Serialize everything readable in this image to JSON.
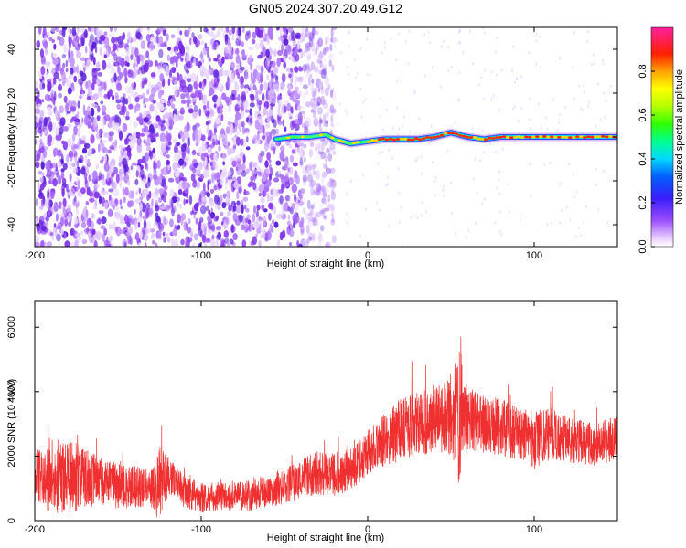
{
  "title": "GN05.2024.307.20.49.G12",
  "chart_data": [
    {
      "type": "heatmap",
      "title": "GN05.2024.307.20.49.G12",
      "xlabel": "Height of straight line (km)",
      "ylabel": "Frequency (Hz)",
      "xlim": [
        -200,
        150
      ],
      "ylim": [
        -50,
        50
      ],
      "xticks": [
        "-200",
        "-100",
        "0",
        "100"
      ],
      "yticks": [
        "-40",
        "-20",
        "0",
        "20",
        "40"
      ],
      "colorbar": {
        "label": "Normalized spectral amplitude",
        "range": [
          0.0,
          1.0
        ],
        "ticks": [
          "0.0",
          "0.2",
          "0.4",
          "0.6",
          "0.8"
        ]
      },
      "ridge": {
        "description_points_x": [
          -55,
          -45,
          -35,
          -25,
          -20,
          -10,
          0,
          10,
          20,
          30,
          40,
          45,
          50,
          60,
          70,
          80,
          90,
          100,
          110,
          120,
          130,
          140,
          150
        ],
        "frequency_y": [
          -1,
          0,
          0,
          1,
          -1,
          -3,
          -2,
          -1,
          -1,
          -1,
          0,
          1,
          2,
          0,
          -1,
          0,
          0,
          0,
          0,
          0,
          0,
          0,
          0
        ]
      }
    },
    {
      "type": "line",
      "xlabel": "Height of straight line (km)",
      "ylabel": "SNR (10 * v/v)",
      "xlim": [
        -200,
        150
      ],
      "ylim": [
        0,
        6800
      ],
      "xticks": [
        "-200",
        "-100",
        "0",
        "100"
      ],
      "yticks": [
        "0",
        "2000",
        "4000",
        "6000"
      ],
      "color": "#f03030",
      "envelope": {
        "x": [
          -200,
          -190,
          -180,
          -170,
          -160,
          -150,
          -140,
          -130,
          -125,
          -120,
          -110,
          -100,
          -90,
          -80,
          -70,
          -60,
          -50,
          -40,
          -30,
          -20,
          -10,
          0,
          10,
          20,
          30,
          40,
          50,
          55,
          60,
          70,
          80,
          90,
          100,
          110,
          120,
          130,
          140,
          150
        ],
        "mean": [
          1300,
          1250,
          1400,
          1300,
          1250,
          1050,
          1050,
          1000,
          1100,
          1400,
          900,
          700,
          750,
          750,
          800,
          900,
          1050,
          1300,
          1500,
          1400,
          1650,
          2100,
          2500,
          2800,
          3000,
          3100,
          3300,
          3400,
          3200,
          3000,
          2900,
          2700,
          2500,
          2700,
          2500,
          2400,
          2400,
          2600
        ],
        "amplitude": [
          900,
          1000,
          1200,
          900,
          800,
          700,
          650,
          600,
          1200,
          600,
          500,
          450,
          450,
          450,
          500,
          500,
          550,
          600,
          700,
          700,
          700,
          700,
          800,
          1000,
          1000,
          1000,
          1300,
          2400,
          1000,
          900,
          900,
          800,
          900,
          800,
          700,
          700,
          700,
          700
        ]
      }
    }
  ]
}
